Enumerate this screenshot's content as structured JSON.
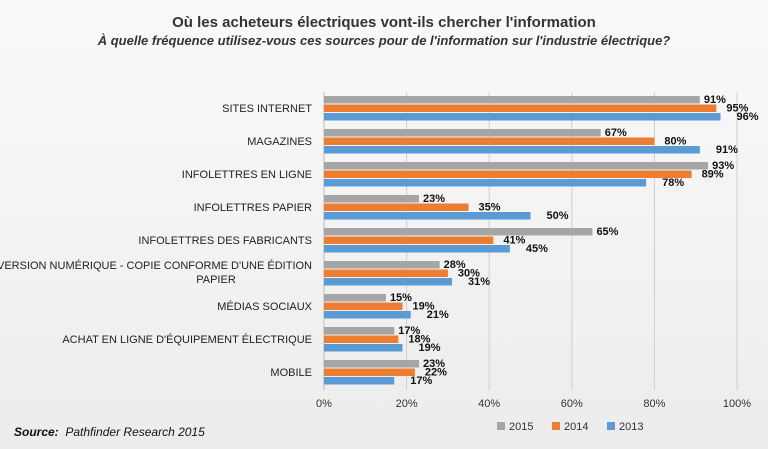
{
  "chart_data": {
    "type": "bar",
    "orientation": "horizontal",
    "title": "Où les acheteurs électriques vont-ils chercher l'information",
    "subtitle": "À quelle fréquence utilisez-vous ces sources pour de l'information sur l'industrie électrique?",
    "categories": [
      "SITES INTERNET",
      "MAGAZINES",
      "INFOLETTRES EN LIGNE",
      "INFOLETTRES PAPIER",
      "INFOLETTRES DES FABRICANTS",
      "VERSION NUMÉRIQUE - COPIE CONFORME D'UNE ÉDITION PAPIER",
      "MÉDIAS SOCIAUX",
      "ACHAT EN LIGNE D'ÉQUIPEMENT ÉLECTRIQUE",
      "MOBILE"
    ],
    "series": [
      {
        "name": "2015",
        "color": "#a5a5a5",
        "values": [
          91,
          67,
          93,
          23,
          65,
          28,
          15,
          17,
          23
        ]
      },
      {
        "name": "2014",
        "color": "#ed7d31",
        "values": [
          95,
          80,
          89,
          35,
          41,
          30,
          19,
          18,
          22
        ]
      },
      {
        "name": "2013",
        "color": "#5b9bd5",
        "values": [
          96,
          91,
          78,
          50,
          45,
          31,
          21,
          19,
          17
        ]
      }
    ],
    "xlim": [
      0,
      100
    ],
    "xticks": [
      "0%",
      "20%",
      "40%",
      "60%",
      "80%",
      "100%"
    ],
    "grid": true,
    "legend_position": "bottom-right",
    "xlabel": "",
    "ylabel": ""
  },
  "source": {
    "label": "Source:",
    "text": "Pathfinder Research 2015"
  }
}
